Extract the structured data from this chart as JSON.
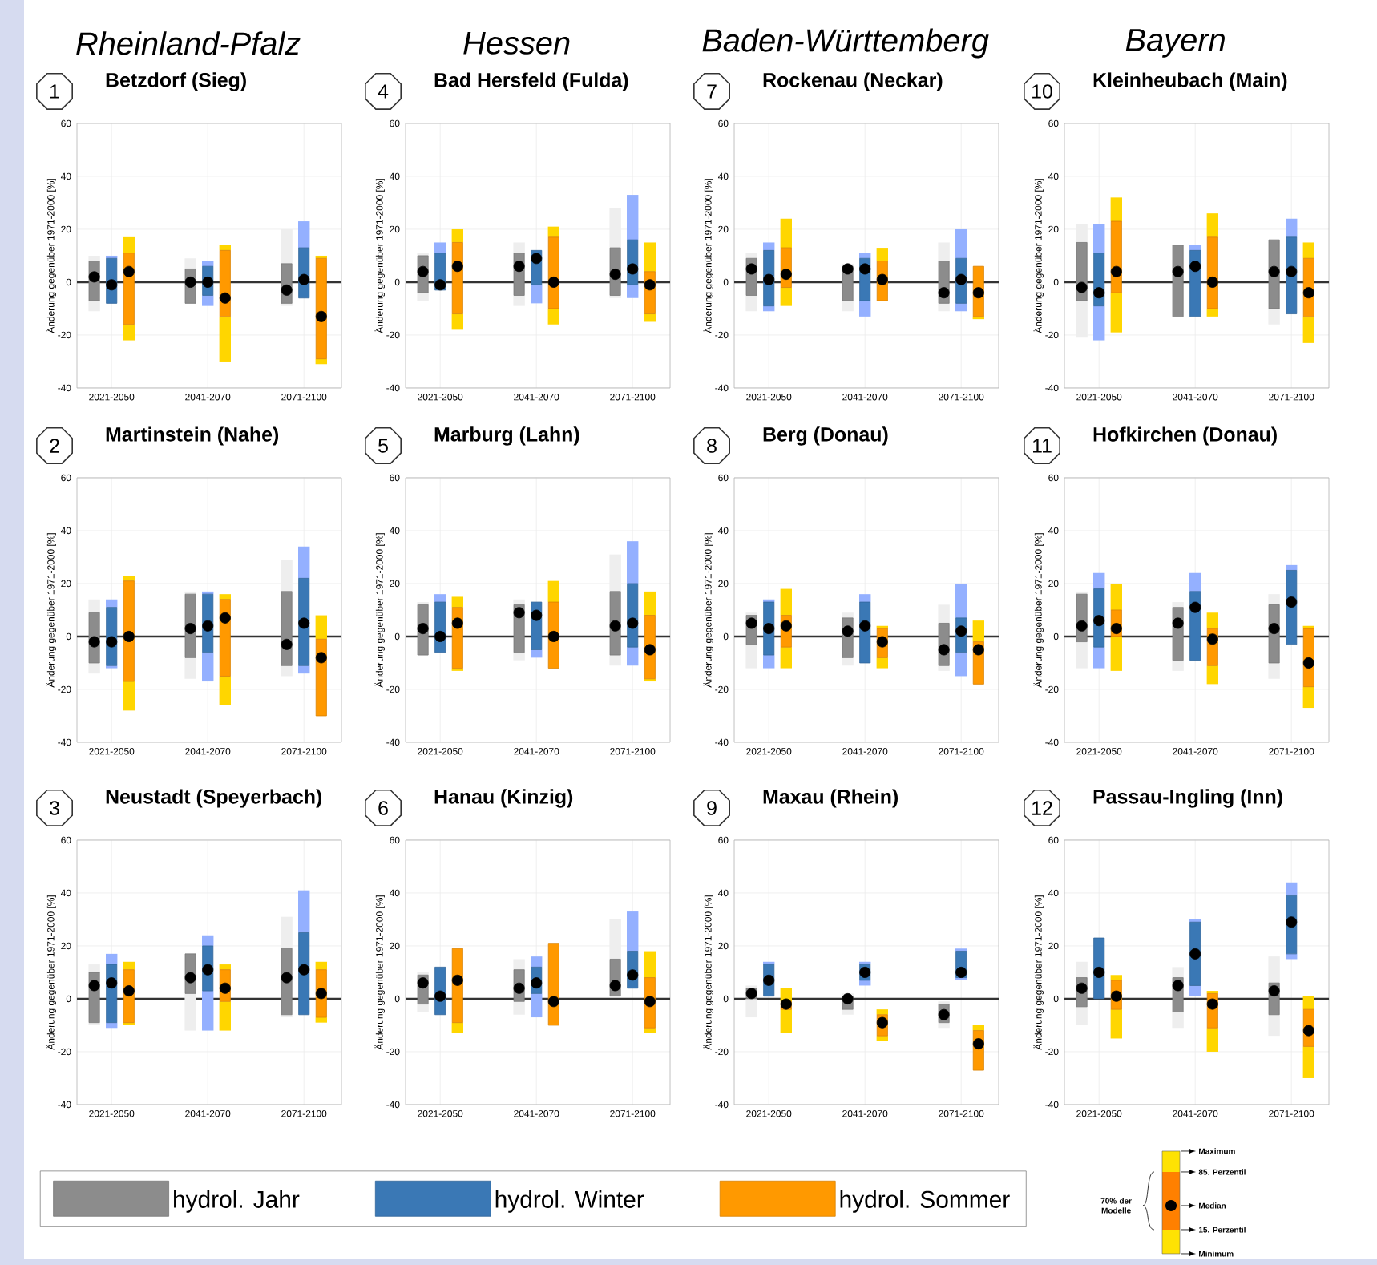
{
  "chart_data": [
    {
      "type": "box",
      "title": "Betzdorf (Sieg)",
      "annotations": [
        "1",
        "Rheinland-Pfalz"
      ],
      "ylabel": "Änderung gegenüber 1971-2000 [%]",
      "categories": [
        "2021-2050",
        "2041-2070",
        "2071-2100"
      ],
      "ylim": [
        -40,
        60
      ],
      "yticks": [
        -40,
        -20,
        0,
        20,
        40,
        60
      ],
      "grid": true,
      "ref_lines": [
        {
          "axis": "y",
          "value": 0,
          "color": "#333333"
        }
      ],
      "series": [
        {
          "color": "#8c8c8c",
          "boxes": [
            {
              "low": -11,
              "q1": -7,
              "median": 2,
              "q3": 8,
              "high": 10
            },
            {
              "low": -8,
              "q1": -8,
              "median": 0,
              "q3": 5,
              "high": 9
            },
            {
              "low": -9,
              "q1": -8,
              "median": -3,
              "q3": 7,
              "high": 20
            }
          ]
        },
        {
          "color": "#3a78b5",
          "boxes": [
            {
              "low": -8,
              "q1": -8,
              "median": -1,
              "q3": 9,
              "high": 10
            },
            {
              "low": -9,
              "q1": -5,
              "median": 0,
              "q3": 6,
              "high": 8
            },
            {
              "low": -6,
              "q1": -6,
              "median": 1,
              "q3": 13,
              "high": 23
            }
          ]
        },
        {
          "color": "#ff9900",
          "boxes": [
            {
              "low": -22,
              "q1": -16,
              "median": 4,
              "q3": 11,
              "high": 17
            },
            {
              "low": -30,
              "q1": -13,
              "median": -6,
              "q3": 12,
              "high": 14
            },
            {
              "low": -31,
              "q1": -29,
              "median": -13,
              "q3": 9,
              "high": 10
            }
          ]
        }
      ]
    },
    {
      "type": "box",
      "title": "Bad Hersfeld (Fulda)",
      "annotations": [
        "4",
        "Hessen"
      ],
      "ylabel": "Änderung gegenüber 1971-2000 [%]",
      "categories": [
        "2021-2050",
        "2041-2070",
        "2071-2100"
      ],
      "ylim": [
        -40,
        60
      ],
      "yticks": [
        -40,
        -20,
        0,
        20,
        40,
        60
      ],
      "grid": true,
      "ref_lines": [
        {
          "axis": "y",
          "value": 0,
          "color": "#333333"
        }
      ],
      "series": [
        {
          "color": "#8c8c8c",
          "boxes": [
            {
              "low": -7,
              "q1": -4,
              "median": 4,
              "q3": 10,
              "high": 11
            },
            {
              "low": -9,
              "q1": -5,
              "median": 6,
              "q3": 11,
              "high": 15
            },
            {
              "low": -6,
              "q1": -5,
              "median": 3,
              "q3": 13,
              "high": 28
            }
          ]
        },
        {
          "color": "#3a78b5",
          "boxes": [
            {
              "low": -3,
              "q1": -3,
              "median": -1,
              "q3": 11,
              "high": 15
            },
            {
              "low": -8,
              "q1": -1,
              "median": 9,
              "q3": 12,
              "high": 12
            },
            {
              "low": -6,
              "q1": -1,
              "median": 5,
              "q3": 16,
              "high": 33
            }
          ]
        },
        {
          "color": "#ff9900",
          "boxes": [
            {
              "low": -18,
              "q1": -12,
              "median": 6,
              "q3": 15,
              "high": 20
            },
            {
              "low": -16,
              "q1": -10,
              "median": 0,
              "q3": 17,
              "high": 21
            },
            {
              "low": -15,
              "q1": -12,
              "median": -1,
              "q3": 4,
              "high": 15
            }
          ]
        }
      ]
    },
    {
      "type": "box",
      "title": "Rockenau (Neckar)",
      "annotations": [
        "7",
        "Baden-Württemberg"
      ],
      "ylabel": "Änderung gegenüber 1971-2000 [%]",
      "categories": [
        "2021-2050",
        "2041-2070",
        "2071-2100"
      ],
      "ylim": [
        -40,
        60
      ],
      "yticks": [
        -40,
        -20,
        0,
        20,
        40,
        60
      ],
      "grid": true,
      "ref_lines": [
        {
          "axis": "y",
          "value": 0,
          "color": "#333333"
        }
      ],
      "series": [
        {
          "color": "#8c8c8c",
          "boxes": [
            {
              "low": -11,
              "q1": -5,
              "median": 5,
              "q3": 9,
              "high": 11
            },
            {
              "low": -11,
              "q1": -7,
              "median": 5,
              "q3": 6,
              "high": 7
            },
            {
              "low": -11,
              "q1": -8,
              "median": -4,
              "q3": 8,
              "high": 15
            }
          ]
        },
        {
          "color": "#3a78b5",
          "boxes": [
            {
              "low": -11,
              "q1": -9,
              "median": 1,
              "q3": 12,
              "high": 15
            },
            {
              "low": -13,
              "q1": -7,
              "median": 5,
              "q3": 9,
              "high": 11
            },
            {
              "low": -11,
              "q1": -8,
              "median": 1,
              "q3": 9,
              "high": 20
            }
          ]
        },
        {
          "color": "#ff9900",
          "boxes": [
            {
              "low": -9,
              "q1": -2,
              "median": 3,
              "q3": 13,
              "high": 24
            },
            {
              "low": -7,
              "q1": -7,
              "median": 1,
              "q3": 8,
              "high": 13
            },
            {
              "low": -14,
              "q1": -13,
              "median": -4,
              "q3": 6,
              "high": 6
            }
          ]
        }
      ]
    },
    {
      "type": "box",
      "title": "Kleinheubach (Main)",
      "annotations": [
        "10",
        "Bayern"
      ],
      "ylabel": "Änderung gegenüber 1971-2000 [%]",
      "categories": [
        "2021-2050",
        "2041-2070",
        "2071-2100"
      ],
      "ylim": [
        -40,
        60
      ],
      "yticks": [
        -40,
        -20,
        0,
        20,
        40,
        60
      ],
      "grid": true,
      "ref_lines": [
        {
          "axis": "y",
          "value": 0,
          "color": "#333333"
        }
      ],
      "series": [
        {
          "color": "#8c8c8c",
          "boxes": [
            {
              "low": -21,
              "q1": -7,
              "median": -2,
              "q3": 15,
              "high": 22
            },
            {
              "low": -13,
              "q1": -13,
              "median": 4,
              "q3": 14,
              "high": 14
            },
            {
              "low": -16,
              "q1": -10,
              "median": 4,
              "q3": 16,
              "high": 16
            }
          ]
        },
        {
          "color": "#3a78b5",
          "boxes": [
            {
              "low": -22,
              "q1": -9,
              "median": -4,
              "q3": 11,
              "high": 22
            },
            {
              "low": -13,
              "q1": -13,
              "median": 6,
              "q3": 12,
              "high": 14
            },
            {
              "low": -12,
              "q1": -12,
              "median": 4,
              "q3": 17,
              "high": 24
            }
          ]
        },
        {
          "color": "#ff9900",
          "boxes": [
            {
              "low": -19,
              "q1": -4,
              "median": 4,
              "q3": 23,
              "high": 32
            },
            {
              "low": -13,
              "q1": -10,
              "median": 0,
              "q3": 17,
              "high": 26
            },
            {
              "low": -23,
              "q1": -13,
              "median": -4,
              "q3": 9,
              "high": 15
            }
          ]
        }
      ]
    },
    {
      "type": "box",
      "title": "Martinstein (Nahe)",
      "annotations": [
        "2"
      ],
      "ylabel": "Änderung gegenüber 1971-2000 [%]",
      "categories": [
        "2021-2050",
        "2041-2070",
        "2071-2100"
      ],
      "ylim": [
        -40,
        60
      ],
      "yticks": [
        -40,
        -20,
        0,
        20,
        40,
        60
      ],
      "grid": true,
      "ref_lines": [
        {
          "axis": "y",
          "value": 0,
          "color": "#333333"
        }
      ],
      "series": [
        {
          "color": "#8c8c8c",
          "boxes": [
            {
              "low": -14,
              "q1": -10,
              "median": -2,
              "q3": 9,
              "high": 14
            },
            {
              "low": -16,
              "q1": -8,
              "median": 3,
              "q3": 16,
              "high": 17
            },
            {
              "low": -15,
              "q1": -11,
              "median": -3,
              "q3": 17,
              "high": 29
            }
          ]
        },
        {
          "color": "#3a78b5",
          "boxes": [
            {
              "low": -12,
              "q1": -11,
              "median": -2,
              "q3": 11,
              "high": 14
            },
            {
              "low": -17,
              "q1": -6,
              "median": 4,
              "q3": 16,
              "high": 17
            },
            {
              "low": -14,
              "q1": -11,
              "median": 5,
              "q3": 22,
              "high": 34
            }
          ]
        },
        {
          "color": "#ff9900",
          "boxes": [
            {
              "low": -28,
              "q1": -17,
              "median": 0,
              "q3": 21,
              "high": 23
            },
            {
              "low": -26,
              "q1": -15,
              "median": 7,
              "q3": 14,
              "high": 16
            },
            {
              "low": -30,
              "q1": -30,
              "median": -8,
              "q3": -1,
              "high": 8
            }
          ]
        }
      ]
    },
    {
      "type": "box",
      "title": "Marburg (Lahn)",
      "annotations": [
        "5"
      ],
      "ylabel": "Änderung gegenüber 1971-2000 [%]",
      "categories": [
        "2021-2050",
        "2041-2070",
        "2071-2100"
      ],
      "ylim": [
        -40,
        60
      ],
      "yticks": [
        -40,
        -20,
        0,
        20,
        40,
        60
      ],
      "grid": true,
      "ref_lines": [
        {
          "axis": "y",
          "value": 0,
          "color": "#333333"
        }
      ],
      "series": [
        {
          "color": "#8c8c8c",
          "boxes": [
            {
              "low": -7,
              "q1": -7,
              "median": 3,
              "q3": 12,
              "high": 13
            },
            {
              "low": -9,
              "q1": -6,
              "median": 9,
              "q3": 12,
              "high": 14
            },
            {
              "low": -11,
              "q1": -7,
              "median": 4,
              "q3": 17,
              "high": 31
            }
          ]
        },
        {
          "color": "#3a78b5",
          "boxes": [
            {
              "low": -6,
              "q1": -6,
              "median": 0,
              "q3": 13,
              "high": 16
            },
            {
              "low": -8,
              "q1": -5,
              "median": 8,
              "q3": 13,
              "high": 13
            },
            {
              "low": -11,
              "q1": -4,
              "median": 5,
              "q3": 20,
              "high": 36
            }
          ]
        },
        {
          "color": "#ff9900",
          "boxes": [
            {
              "low": -13,
              "q1": -12,
              "median": 5,
              "q3": 11,
              "high": 15
            },
            {
              "low": -12,
              "q1": -12,
              "median": 0,
              "q3": 13,
              "high": 21
            },
            {
              "low": -17,
              "q1": -16,
              "median": -5,
              "q3": 8,
              "high": 17
            }
          ]
        }
      ]
    },
    {
      "type": "box",
      "title": "Berg (Donau)",
      "annotations": [
        "8"
      ],
      "ylabel": "Änderung gegenüber 1971-2000 [%]",
      "categories": [
        "2021-2050",
        "2041-2070",
        "2071-2100"
      ],
      "ylim": [
        -40,
        60
      ],
      "yticks": [
        -40,
        -20,
        0,
        20,
        40,
        60
      ],
      "grid": true,
      "ref_lines": [
        {
          "axis": "y",
          "value": 0,
          "color": "#333333"
        }
      ],
      "series": [
        {
          "color": "#8c8c8c",
          "boxes": [
            {
              "low": -12,
              "q1": -3,
              "median": 5,
              "q3": 8,
              "high": 9
            },
            {
              "low": -11,
              "q1": -8,
              "median": 2,
              "q3": 7,
              "high": 9
            },
            {
              "low": -13,
              "q1": -11,
              "median": -5,
              "q3": 5,
              "high": 12
            }
          ]
        },
        {
          "color": "#3a78b5",
          "boxes": [
            {
              "low": -12,
              "q1": -7,
              "median": 3,
              "q3": 13,
              "high": 14
            },
            {
              "low": -10,
              "q1": -10,
              "median": 4,
              "q3": 13,
              "high": 16
            },
            {
              "low": -15,
              "q1": -6,
              "median": 2,
              "q3": 7,
              "high": 20
            }
          ]
        },
        {
          "color": "#ff9900",
          "boxes": [
            {
              "low": -12,
              "q1": -4,
              "median": 4,
              "q3": 8,
              "high": 18
            },
            {
              "low": -12,
              "q1": -8,
              "median": -2,
              "q3": 3,
              "high": 4
            },
            {
              "low": -18,
              "q1": -18,
              "median": -5,
              "q3": -2,
              "high": 6
            }
          ]
        }
      ]
    },
    {
      "type": "box",
      "title": "Hofkirchen (Donau)",
      "annotations": [
        "11"
      ],
      "ylabel": "Änderung gegenüber 1971-2000 [%]",
      "categories": [
        "2021-2050",
        "2041-2070",
        "2071-2100"
      ],
      "ylim": [
        -40,
        60
      ],
      "yticks": [
        -40,
        -20,
        0,
        20,
        40,
        60
      ],
      "grid": true,
      "ref_lines": [
        {
          "axis": "y",
          "value": 0,
          "color": "#333333"
        }
      ],
      "series": [
        {
          "color": "#8c8c8c",
          "boxes": [
            {
              "low": -12,
              "q1": -2,
              "median": 4,
              "q3": 16,
              "high": 17
            },
            {
              "low": -13,
              "q1": -9,
              "median": 5,
              "q3": 11,
              "high": 13
            },
            {
              "low": -16,
              "q1": -10,
              "median": 3,
              "q3": 12,
              "high": 16
            }
          ]
        },
        {
          "color": "#3a78b5",
          "boxes": [
            {
              "low": -12,
              "q1": -4,
              "median": 6,
              "q3": 18,
              "high": 24
            },
            {
              "low": -9,
              "q1": -9,
              "median": 11,
              "q3": 17,
              "high": 24
            },
            {
              "low": -3,
              "q1": -3,
              "median": 13,
              "q3": 25,
              "high": 27
            }
          ]
        },
        {
          "color": "#ff9900",
          "boxes": [
            {
              "low": -13,
              "q1": 0,
              "median": 3,
              "q3": 10,
              "high": 20
            },
            {
              "low": -18,
              "q1": -11,
              "median": -1,
              "q3": 3,
              "high": 9
            },
            {
              "low": -27,
              "q1": -19,
              "median": -10,
              "q3": 3,
              "high": 4
            }
          ]
        }
      ]
    },
    {
      "type": "box",
      "title": "Neustadt (Speyerbach)",
      "annotations": [
        "3"
      ],
      "ylabel": "Änderung gegenüber 1971-2000 [%]",
      "categories": [
        "2021-2050",
        "2041-2070",
        "2071-2100"
      ],
      "ylim": [
        -40,
        60
      ],
      "yticks": [
        -40,
        -20,
        0,
        20,
        40,
        60
      ],
      "grid": true,
      "legend": "bottom",
      "ref_lines": [
        {
          "axis": "y",
          "value": 0,
          "color": "#333333"
        }
      ],
      "series": [
        {
          "name": "hydrol. Jahr",
          "color": "#8c8c8c",
          "boxes": [
            {
              "low": -10,
              "q1": -9,
              "median": 5,
              "q3": 10,
              "high": 13
            },
            {
              "low": -12,
              "q1": 2,
              "median": 8,
              "q3": 17,
              "high": 17
            },
            {
              "low": -7,
              "q1": -6,
              "median": 8,
              "q3": 19,
              "high": 31
            }
          ]
        },
        {
          "name": "hydrol. Winter",
          "color": "#3a78b5",
          "boxes": [
            {
              "low": -11,
              "q1": -9,
              "median": 6,
              "q3": 13,
              "high": 17
            },
            {
              "low": -12,
              "q1": 3,
              "median": 11,
              "q3": 20,
              "high": 24
            },
            {
              "low": -6,
              "q1": -6,
              "median": 11,
              "q3": 25,
              "high": 41
            }
          ]
        },
        {
          "name": "hydrol. Sommer",
          "color": "#ff9900",
          "boxes": [
            {
              "low": -10,
              "q1": -9,
              "median": 3,
              "q3": 11,
              "high": 14
            },
            {
              "low": -12,
              "q1": -1,
              "median": 4,
              "q3": 11,
              "high": 13
            },
            {
              "low": -9,
              "q1": -7,
              "median": 2,
              "q3": 11,
              "high": 14
            }
          ]
        }
      ]
    },
    {
      "type": "box",
      "title": "Hanau (Kinzig)",
      "annotations": [
        "6"
      ],
      "ylabel": "Änderung gegenüber 1971-2000 [%]",
      "categories": [
        "2021-2050",
        "2041-2070",
        "2071-2100"
      ],
      "ylim": [
        -40,
        60
      ],
      "yticks": [
        -40,
        -20,
        0,
        20,
        40,
        60
      ],
      "grid": true,
      "ref_lines": [
        {
          "axis": "y",
          "value": 0,
          "color": "#333333"
        }
      ],
      "series": [
        {
          "color": "#8c8c8c",
          "boxes": [
            {
              "low": -5,
              "q1": -2,
              "median": 6,
              "q3": 9,
              "high": 10
            },
            {
              "low": -6,
              "q1": -1,
              "median": 4,
              "q3": 11,
              "high": 15
            },
            {
              "low": 1,
              "q1": 1,
              "median": 5,
              "q3": 15,
              "high": 30
            }
          ]
        },
        {
          "color": "#3a78b5",
          "boxes": [
            {
              "low": -6,
              "q1": -6,
              "median": 1,
              "q3": 12,
              "high": 12
            },
            {
              "low": -7,
              "q1": 2,
              "median": 6,
              "q3": 12,
              "high": 16
            },
            {
              "low": 4,
              "q1": 4,
              "median": 9,
              "q3": 18,
              "high": 33
            }
          ]
        },
        {
          "color": "#ff9900",
          "boxes": [
            {
              "low": -13,
              "q1": -9,
              "median": 7,
              "q3": 19,
              "high": 19
            },
            {
              "low": -10,
              "q1": -10,
              "median": -1,
              "q3": 21,
              "high": 21
            },
            {
              "low": -13,
              "q1": -11,
              "median": -1,
              "q3": 8,
              "high": 18
            }
          ]
        }
      ]
    },
    {
      "type": "box",
      "title": "Maxau (Rhein)",
      "annotations": [
        "9"
      ],
      "ylabel": "Änderung gegenüber 1971-2000 [%]",
      "categories": [
        "2021-2050",
        "2041-2070",
        "2071-2100"
      ],
      "ylim": [
        -40,
        60
      ],
      "yticks": [
        -40,
        -20,
        0,
        20,
        40,
        60
      ],
      "grid": true,
      "ref_lines": [
        {
          "axis": "y",
          "value": 0,
          "color": "#333333"
        }
      ],
      "series": [
        {
          "color": "#8c8c8c",
          "boxes": [
            {
              "low": -7,
              "q1": 0,
              "median": 2,
              "q3": 4,
              "high": 5
            },
            {
              "low": -6,
              "q1": -4,
              "median": 0,
              "q3": 1,
              "high": 2
            },
            {
              "low": -11,
              "q1": -9,
              "median": -6,
              "q3": -2,
              "high": -1
            }
          ]
        },
        {
          "color": "#3a78b5",
          "boxes": [
            {
              "low": 1,
              "q1": 1,
              "median": 7,
              "q3": 13,
              "high": 14
            },
            {
              "low": 5,
              "q1": 7,
              "median": 10,
              "q3": 13,
              "high": 14
            },
            {
              "low": 7,
              "q1": 8,
              "median": 10,
              "q3": 18,
              "high": 19
            }
          ]
        },
        {
          "color": "#ff9900",
          "boxes": [
            {
              "low": -13,
              "q1": -4,
              "median": -2,
              "q3": -1,
              "high": 4
            },
            {
              "low": -16,
              "q1": -14,
              "median": -9,
              "q3": -6,
              "high": -4
            },
            {
              "low": -27,
              "q1": -27,
              "median": -17,
              "q3": -12,
              "high": -10
            }
          ]
        }
      ]
    },
    {
      "type": "box",
      "title": "Passau-Ingling (Inn)",
      "annotations": [
        "12"
      ],
      "ylabel": "Änderung gegenüber 1971-2000 [%]",
      "categories": [
        "2021-2050",
        "2041-2070",
        "2071-2100"
      ],
      "ylim": [
        -40,
        60
      ],
      "yticks": [
        -40,
        -20,
        0,
        20,
        40,
        60
      ],
      "grid": true,
      "ref_lines": [
        {
          "axis": "y",
          "value": 0,
          "color": "#333333"
        }
      ],
      "series": [
        {
          "color": "#8c8c8c",
          "boxes": [
            {
              "low": -10,
              "q1": -3,
              "median": 4,
              "q3": 8,
              "high": 14
            },
            {
              "low": -11,
              "q1": -5,
              "median": 5,
              "q3": 8,
              "high": 12
            },
            {
              "low": -14,
              "q1": -6,
              "median": 3,
              "q3": 6,
              "high": 16
            }
          ]
        },
        {
          "color": "#3a78b5",
          "boxes": [
            {
              "low": 0,
              "q1": 0,
              "median": 10,
              "q3": 23,
              "high": 23
            },
            {
              "low": 1,
              "q1": 5,
              "median": 17,
              "q3": 29,
              "high": 30
            },
            {
              "low": 15,
              "q1": 17,
              "median": 29,
              "q3": 39,
              "high": 44
            }
          ]
        },
        {
          "color": "#ff9900",
          "boxes": [
            {
              "low": -15,
              "q1": -4,
              "median": 1,
              "q3": 7,
              "high": 9
            },
            {
              "low": -20,
              "q1": -11,
              "median": -2,
              "q3": 2,
              "high": 3
            },
            {
              "low": -30,
              "q1": -18,
              "median": -12,
              "q3": -4,
              "high": 1
            }
          ]
        }
      ]
    },
    {
      "type": "other",
      "annotations": [
        "Maximum",
        "85. Perzentil",
        "Median",
        "15. Perzentil",
        "Minimum",
        "70% der Modelle"
      ]
    }
  ]
}
